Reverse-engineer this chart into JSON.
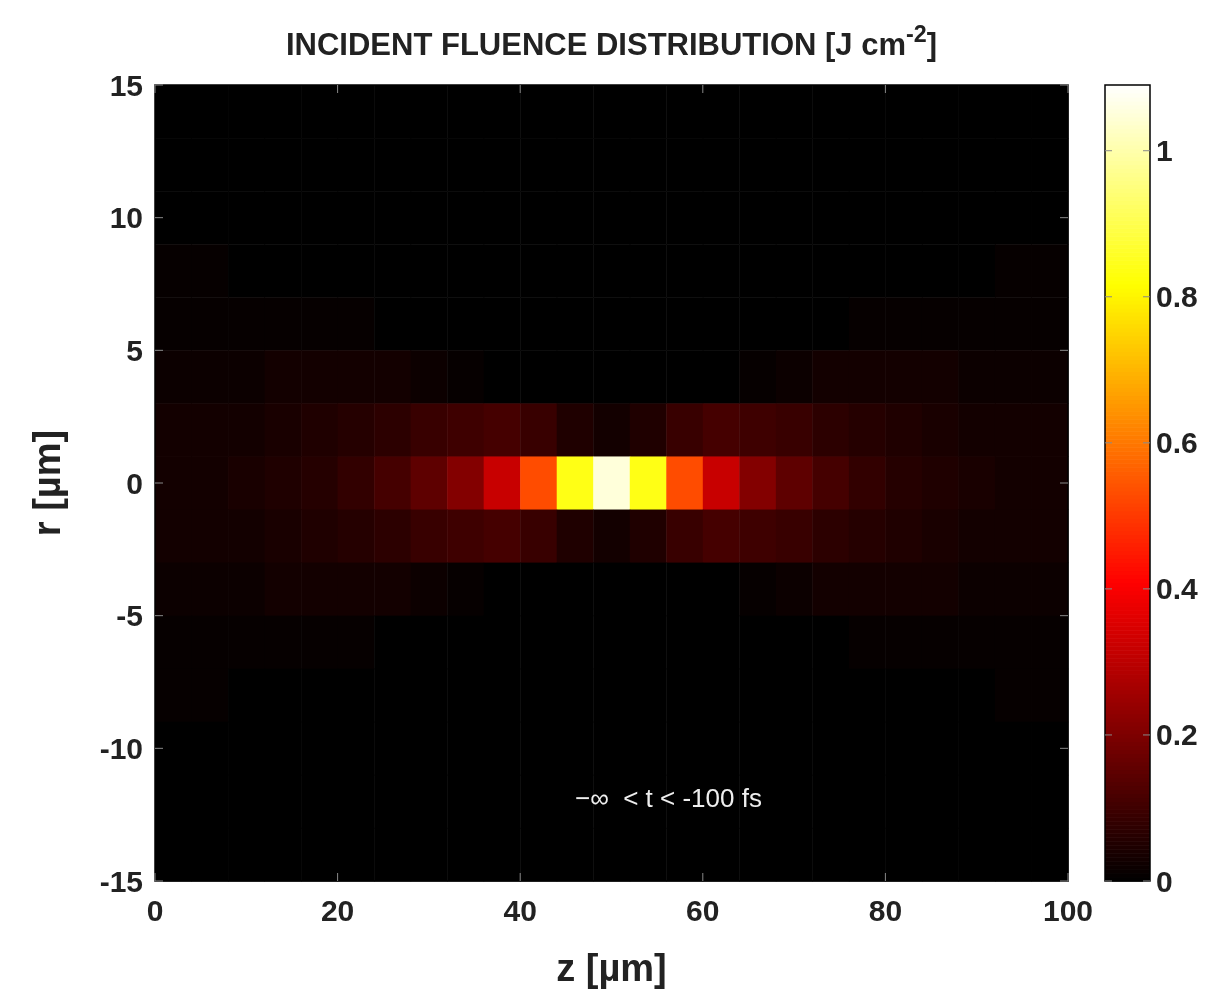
{
  "chart_data": {
    "type": "heatmap",
    "title": "INCIDENT FLUENCE DISTRIBUTION [J cm$^{-2}$]",
    "xlabel": "z [µm]",
    "ylabel": "r [µm]",
    "xlim": [
      0,
      100
    ],
    "xticks": [
      0,
      20,
      40,
      60,
      80,
      100
    ],
    "ylim": [
      -15,
      15
    ],
    "yticks": [
      -15,
      -10,
      -5,
      0,
      5,
      10,
      15
    ],
    "clim": [
      0,
      1.09
    ],
    "cticks": [
      0,
      0.2,
      0.4,
      0.6,
      0.8,
      1
    ],
    "annotations": [
      "−∞  < t < -100 fs"
    ],
    "cells": [
      [
        0,
        0,
        0,
        0,
        0,
        0,
        0,
        0,
        0,
        0,
        0,
        0,
        0,
        0,
        0,
        0,
        0,
        0,
        0,
        0,
        0,
        0,
        0,
        0,
        0
      ],
      [
        0,
        0,
        0,
        0,
        0,
        0,
        0,
        0,
        0,
        0,
        0,
        0,
        0,
        0,
        0,
        0,
        0,
        0,
        0,
        0,
        0,
        0,
        0,
        0,
        0
      ],
      [
        0,
        0,
        0,
        0,
        0,
        0,
        0,
        0,
        0,
        0,
        0,
        0,
        0,
        0,
        0,
        0,
        0,
        0,
        0,
        0,
        0,
        0,
        0,
        0,
        0
      ],
      [
        0.01,
        0.01,
        0,
        0,
        0,
        0,
        0,
        0,
        0,
        0,
        0,
        0,
        0,
        0,
        0,
        0,
        0,
        0,
        0,
        0,
        0,
        0,
        0,
        0.01,
        0.01
      ],
      [
        0.01,
        0.01,
        0.01,
        0.01,
        0.01,
        0.01,
        0,
        0,
        0,
        0,
        0,
        0,
        0,
        0,
        0,
        0,
        0,
        0,
        0,
        0.01,
        0.01,
        0.01,
        0.01,
        0.01,
        0.01
      ],
      [
        0.02,
        0.02,
        0.02,
        0.03,
        0.03,
        0.03,
        0.03,
        0.02,
        0.01,
        0,
        0,
        0,
        0,
        0,
        0,
        0,
        0.01,
        0.02,
        0.03,
        0.03,
        0.03,
        0.03,
        0.02,
        0.02,
        0.02
      ],
      [
        0.03,
        0.03,
        0.03,
        0.04,
        0.05,
        0.06,
        0.07,
        0.09,
        0.1,
        0.11,
        0.09,
        0.05,
        0.03,
        0.05,
        0.09,
        0.11,
        0.1,
        0.09,
        0.07,
        0.06,
        0.05,
        0.04,
        0.03,
        0.03,
        0.03
      ],
      [
        0.03,
        0.03,
        0.04,
        0.05,
        0.06,
        0.08,
        0.11,
        0.15,
        0.21,
        0.32,
        0.53,
        0.84,
        1.05,
        0.84,
        0.53,
        0.32,
        0.21,
        0.15,
        0.11,
        0.08,
        0.06,
        0.05,
        0.04,
        0.03,
        0.03
      ],
      [
        0.03,
        0.03,
        0.03,
        0.04,
        0.05,
        0.06,
        0.07,
        0.09,
        0.1,
        0.11,
        0.09,
        0.05,
        0.03,
        0.05,
        0.09,
        0.11,
        0.1,
        0.09,
        0.07,
        0.06,
        0.05,
        0.04,
        0.03,
        0.03,
        0.03
      ],
      [
        0.02,
        0.02,
        0.02,
        0.03,
        0.03,
        0.03,
        0.03,
        0.02,
        0.01,
        0,
        0,
        0,
        0,
        0,
        0,
        0,
        0.01,
        0.02,
        0.03,
        0.03,
        0.03,
        0.03,
        0.02,
        0.02,
        0.02
      ],
      [
        0.01,
        0.01,
        0.01,
        0.01,
        0.01,
        0.01,
        0,
        0,
        0,
        0,
        0,
        0,
        0,
        0,
        0,
        0,
        0,
        0,
        0,
        0.01,
        0.01,
        0.01,
        0.01,
        0.01,
        0.01
      ],
      [
        0.01,
        0.01,
        0,
        0,
        0,
        0,
        0,
        0,
        0,
        0,
        0,
        0,
        0,
        0,
        0,
        0,
        0,
        0,
        0,
        0,
        0,
        0,
        0,
        0.01,
        0.01
      ],
      [
        0,
        0,
        0,
        0,
        0,
        0,
        0,
        0,
        0,
        0,
        0,
        0,
        0,
        0,
        0,
        0,
        0,
        0,
        0,
        0,
        0,
        0,
        0,
        0,
        0
      ],
      [
        0,
        0,
        0,
        0,
        0,
        0,
        0,
        0,
        0,
        0,
        0,
        0,
        0,
        0,
        0,
        0,
        0,
        0,
        0,
        0,
        0,
        0,
        0,
        0,
        0
      ],
      [
        0,
        0,
        0,
        0,
        0,
        0,
        0,
        0,
        0,
        0,
        0,
        0,
        0,
        0,
        0,
        0,
        0,
        0,
        0,
        0,
        0,
        0,
        0,
        0,
        0
      ]
    ]
  }
}
